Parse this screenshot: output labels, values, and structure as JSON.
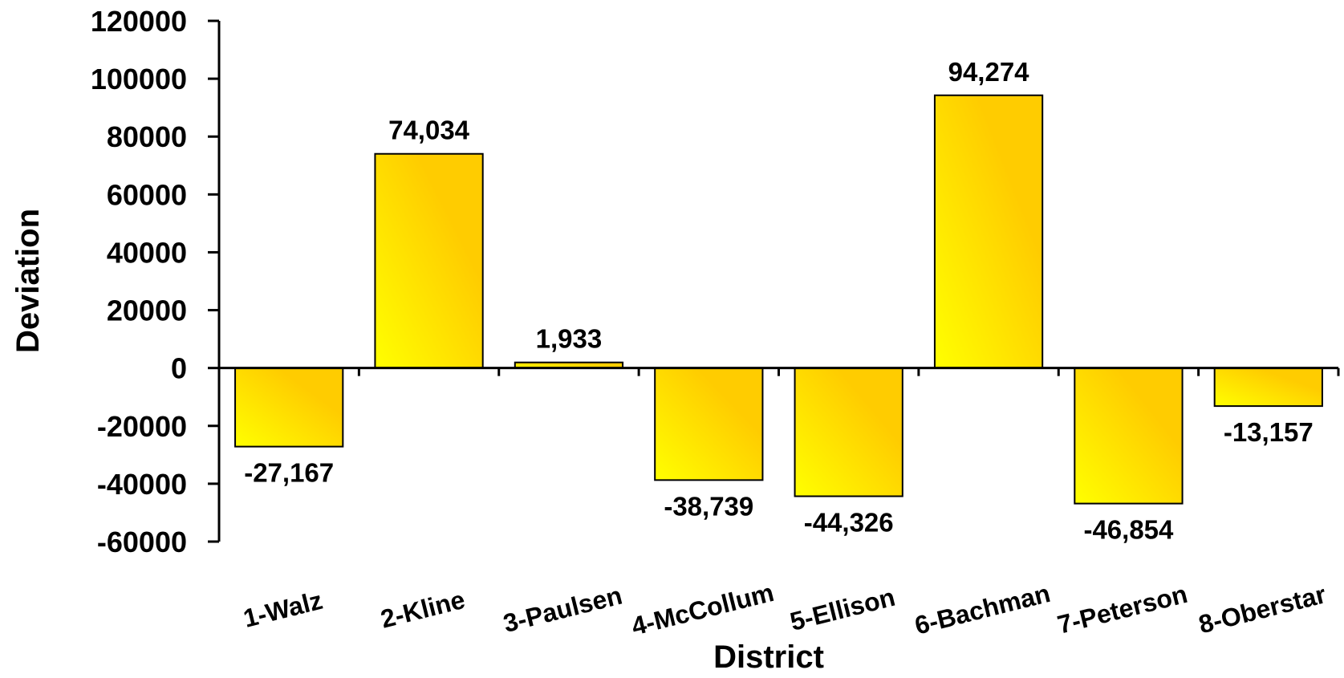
{
  "chart_data": {
    "type": "bar",
    "title": "",
    "xlabel": "District",
    "ylabel": "Deviation",
    "categories": [
      "1-Walz",
      "2-Kline",
      "3-Paulsen",
      "4-McCollum",
      "5-Ellison",
      "6-Bachman",
      "7-Peterson",
      "8-Oberstar"
    ],
    "values": [
      -27167,
      74034,
      1933,
      -38739,
      -44326,
      94274,
      -46854,
      -13157
    ],
    "data_labels": [
      "-27,167",
      "74,034",
      "1,933",
      "-38,739",
      "-44,326",
      "94,274",
      "-46,854",
      "-13,157"
    ],
    "ylim": [
      -60000,
      120000
    ],
    "yticks": [
      -60000,
      -40000,
      -20000,
      0,
      20000,
      40000,
      60000,
      80000,
      100000,
      120000
    ],
    "ytick_labels": [
      "-60000",
      "-40000",
      "-20000",
      "0",
      "20000",
      "40000",
      "60000",
      "80000",
      "100000",
      "120000"
    ],
    "grid": false,
    "legend": "none",
    "colors": {
      "bar_light": "#FFFF00",
      "bar_dark": "#FFCC00",
      "bar_stroke": "#000000",
      "axis": "#000000"
    }
  }
}
